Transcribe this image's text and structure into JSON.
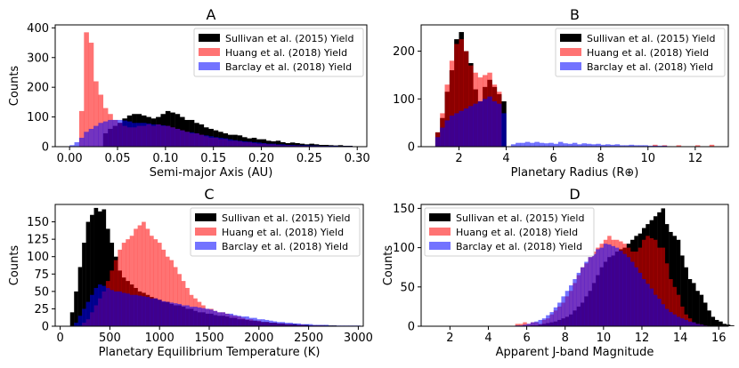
{
  "chart_data": [
    {
      "type": "histogram",
      "title": "A",
      "xlabel": "Semi-major Axis (AU)",
      "ylabel": "Counts",
      "xlim": [
        -0.015,
        0.31
      ],
      "ylim": [
        0,
        410
      ],
      "xticks": [
        0.0,
        0.05,
        0.1,
        0.15,
        0.2,
        0.25,
        0.3
      ],
      "xtick_labels": [
        "0.00",
        "0.05",
        "0.10",
        "0.15",
        "0.20",
        "0.25",
        "0.30"
      ],
      "yticks": [
        0,
        100,
        200,
        300,
        400
      ],
      "bin_start": 0.0,
      "bin_width": 0.005,
      "legend_position": "top-right",
      "series": [
        {
          "name": "Sullivan et al. (2015) Yield",
          "color": "#000000",
          "opacity": 1.0,
          "values": [
            0,
            0,
            0,
            0,
            0,
            0,
            0,
            45,
            60,
            70,
            80,
            95,
            105,
            110,
            110,
            105,
            100,
            95,
            100,
            110,
            120,
            115,
            110,
            100,
            90,
            90,
            80,
            75,
            65,
            60,
            55,
            50,
            45,
            40,
            40,
            38,
            32,
            28,
            30,
            25,
            25,
            20,
            18,
            20,
            15,
            12,
            14,
            12,
            10,
            8,
            10,
            8,
            6,
            6,
            5,
            4,
            5,
            3,
            3,
            0,
            0
          ]
        },
        {
          "name": "Huang et al. (2018) Yield",
          "color": "#ff0000",
          "opacity": 0.55,
          "values": [
            0,
            0,
            120,
            385,
            350,
            220,
            175,
            130,
            110,
            90,
            80,
            70,
            65,
            65,
            70,
            70,
            75,
            70,
            75,
            70,
            70,
            65,
            60,
            55,
            50,
            45,
            45,
            40,
            35,
            30,
            30,
            25,
            25,
            20,
            20,
            18,
            15,
            15,
            12,
            10,
            10,
            8,
            8,
            6,
            5,
            5,
            4,
            4,
            3,
            3,
            2,
            2,
            2,
            2,
            1,
            1,
            0,
            0,
            0,
            0,
            0
          ]
        },
        {
          "name": "Barclay et al. (2018) Yield",
          "color": "#0000ff",
          "opacity": 0.55,
          "values": [
            5,
            15,
            30,
            50,
            60,
            70,
            80,
            85,
            90,
            90,
            90,
            88,
            85,
            80,
            80,
            80,
            78,
            75,
            75,
            72,
            70,
            65,
            60,
            55,
            50,
            48,
            45,
            40,
            38,
            35,
            32,
            30,
            28,
            25,
            22,
            20,
            18,
            17,
            15,
            14,
            12,
            10,
            10,
            8,
            8,
            6,
            6,
            5,
            5,
            5,
            4,
            4,
            3,
            3,
            3,
            3,
            2,
            2,
            2,
            1,
            1
          ]
        }
      ]
    },
    {
      "type": "histogram",
      "title": "B",
      "xlabel": "Planetary Radius (R⊕)",
      "ylabel": "",
      "xlim": [
        0.4,
        13.4
      ],
      "ylim": [
        0,
        255
      ],
      "xticks": [
        2,
        4,
        6,
        8,
        10,
        12
      ],
      "xtick_labels": [
        "2",
        "4",
        "6",
        "8",
        "10",
        "12"
      ],
      "yticks": [
        0,
        100,
        200
      ],
      "bin_start": 1.0,
      "bin_width": 0.2,
      "legend_position": "top-right",
      "series": [
        {
          "name": "Sullivan et al. (2015) Yield",
          "color": "#000000",
          "opacity": 1.0,
          "values": [
            30,
            60,
            115,
            160,
            225,
            240,
            200,
            175,
            120,
            95,
            125,
            140,
            125,
            110,
            95
          ]
        },
        {
          "name": "Huang et al. (2018) Yield",
          "color": "#ff0000",
          "opacity": 0.55,
          "values": [
            30,
            70,
            130,
            180,
            215,
            225,
            200,
            170,
            155,
            145,
            150,
            155,
            130,
            115,
            0,
            0,
            0,
            0,
            0,
            0,
            0,
            0,
            0,
            0,
            0,
            0,
            0,
            0,
            0,
            0,
            0,
            0,
            0,
            0,
            0,
            0,
            0,
            0,
            0,
            0,
            0,
            0,
            0,
            0,
            0,
            0,
            4,
            0,
            3,
            0,
            0,
            3,
            0,
            0,
            0,
            3,
            0,
            0,
            4,
            0
          ]
        },
        {
          "name": "Barclay et al. (2018) Yield",
          "color": "#0000ff",
          "opacity": 0.55,
          "values": [
            20,
            40,
            55,
            65,
            70,
            75,
            80,
            85,
            90,
            95,
            100,
            105,
            95,
            90,
            70,
            0,
            5,
            8,
            8,
            10,
            8,
            10,
            8,
            7,
            8,
            6,
            10,
            7,
            6,
            8,
            5,
            7,
            6,
            5,
            6,
            4,
            5,
            4,
            5,
            3,
            3,
            4,
            3,
            3,
            3,
            2,
            2,
            2,
            2,
            1
          ]
        }
      ]
    },
    {
      "type": "histogram",
      "title": "C",
      "xlabel": "Planetary Equilibrium Temperature (K)",
      "ylabel": "Counts",
      "xlim": [
        -50,
        3050
      ],
      "ylim": [
        0,
        175
      ],
      "xticks": [
        0,
        500,
        1000,
        1500,
        2000,
        2500,
        3000
      ],
      "xtick_labels": [
        "0",
        "500",
        "1000",
        "1500",
        "2000",
        "2500",
        "3000"
      ],
      "yticks": [
        0,
        25,
        50,
        75,
        100,
        125,
        150
      ],
      "bin_start": 100,
      "bin_width": 40,
      "legend_position": "top-right",
      "series": [
        {
          "name": "Sullivan et al. (2015) Yield",
          "color": "#000000",
          "opacity": 1.0,
          "values": [
            20,
            50,
            85,
            120,
            150,
            160,
            170,
            165,
            168,
            140,
            120,
            100,
            80,
            70,
            65,
            60,
            55,
            50,
            48,
            45,
            42,
            40,
            38,
            35,
            35,
            32,
            30,
            30,
            28,
            25,
            25,
            22,
            20,
            20,
            18,
            18,
            16,
            15,
            15,
            14,
            12,
            12,
            10,
            10,
            9,
            8,
            8,
            7,
            6,
            6,
            5,
            5,
            4,
            4,
            3,
            3,
            3,
            2,
            2,
            2,
            1,
            1,
            1,
            1,
            1,
            1,
            1,
            0,
            0,
            0,
            0,
            0,
            0
          ]
        },
        {
          "name": "Huang et al. (2018) Yield",
          "color": "#ff0000",
          "opacity": 0.55,
          "values": [
            0,
            0,
            0,
            5,
            10,
            20,
            30,
            40,
            50,
            65,
            80,
            95,
            110,
            120,
            125,
            130,
            140,
            145,
            150,
            140,
            130,
            125,
            120,
            110,
            100,
            95,
            85,
            75,
            65,
            55,
            45,
            40,
            35,
            30,
            25,
            25,
            22,
            20,
            20,
            18,
            16,
            15,
            14,
            12,
            10,
            10,
            8,
            8,
            6,
            6,
            5,
            5,
            4,
            4,
            3,
            3,
            2,
            2,
            2,
            1,
            1,
            1,
            1,
            1,
            0,
            0,
            0,
            0,
            0,
            0,
            0,
            0,
            0
          ]
        },
        {
          "name": "Barclay et al. (2018) Yield",
          "color": "#0000ff",
          "opacity": 0.55,
          "values": [
            0,
            5,
            15,
            25,
            35,
            45,
            55,
            60,
            58,
            55,
            52,
            50,
            50,
            48,
            47,
            45,
            45,
            44,
            43,
            42,
            40,
            40,
            38,
            36,
            35,
            34,
            33,
            32,
            30,
            30,
            28,
            28,
            27,
            26,
            25,
            24,
            22,
            20,
            20,
            18,
            18,
            16,
            15,
            14,
            14,
            12,
            12,
            10,
            10,
            9,
            8,
            7,
            6,
            6,
            5,
            5,
            4,
            4,
            3,
            3,
            3,
            2,
            2,
            2,
            2,
            1,
            1,
            1,
            1,
            1,
            1,
            1,
            1
          ]
        }
      ]
    },
    {
      "type": "histogram",
      "title": "D",
      "xlabel": "Apparent J-band Magnitude",
      "ylabel": "Counts",
      "xlim": [
        0.5,
        16.5
      ],
      "ylim": [
        0,
        155
      ],
      "xticks": [
        2,
        4,
        6,
        8,
        10,
        12,
        14,
        16
      ],
      "xtick_labels": [
        "2",
        "4",
        "6",
        "8",
        "10",
        "12",
        "14",
        "16"
      ],
      "yticks": [
        0,
        50,
        100,
        150
      ],
      "bin_start": 2.0,
      "bin_width": 0.2,
      "legend_position": "top-left",
      "series": [
        {
          "name": "Sullivan et al. (2015) Yield",
          "color": "#000000",
          "opacity": 1.0,
          "values": [
            0,
            0,
            0,
            0,
            0,
            0,
            0,
            0,
            0,
            0,
            0,
            0,
            0,
            0,
            0,
            0,
            0,
            0,
            0,
            0,
            0,
            1,
            1,
            2,
            3,
            4,
            5,
            6,
            8,
            10,
            12,
            15,
            20,
            25,
            30,
            38,
            45,
            55,
            65,
            75,
            82,
            88,
            90,
            95,
            98,
            100,
            105,
            110,
            115,
            118,
            125,
            130,
            135,
            140,
            145,
            150,
            130,
            120,
            115,
            110,
            90,
            75,
            60,
            55,
            45,
            40,
            30,
            20,
            12,
            8,
            6,
            3,
            2,
            1,
            0,
            0,
            0
          ]
        },
        {
          "name": "Huang et al. (2018) Yield",
          "color": "#ff0000",
          "opacity": 0.55,
          "values": [
            0,
            0,
            0,
            0,
            0,
            0,
            0,
            0,
            0,
            0,
            0,
            0,
            0,
            0,
            0,
            0,
            0,
            3,
            3,
            5,
            3,
            5,
            5,
            3,
            8,
            10,
            15,
            20,
            25,
            30,
            38,
            45,
            55,
            65,
            75,
            80,
            88,
            95,
            100,
            105,
            110,
            115,
            110,
            110,
            108,
            105,
            100,
            95,
            95,
            100,
            110,
            115,
            112,
            110,
            100,
            100,
            80,
            60,
            50,
            40,
            25,
            15,
            10,
            5,
            3,
            2,
            1,
            0,
            0,
            0,
            0,
            0,
            0,
            0,
            0,
            0,
            0
          ]
        },
        {
          "name": "Barclay et al. (2018) Yield",
          "color": "#0000ff",
          "opacity": 0.55,
          "values": [
            0,
            0,
            0,
            0,
            0,
            0,
            0,
            0,
            0,
            0,
            0,
            0,
            0,
            0,
            0,
            0,
            0,
            1,
            1,
            2,
            3,
            5,
            6,
            8,
            10,
            14,
            18,
            24,
            30,
            38,
            45,
            52,
            60,
            68,
            75,
            82,
            88,
            92,
            98,
            100,
            105,
            104,
            102,
            100,
            96,
            92,
            88,
            82,
            75,
            68,
            60,
            54,
            48,
            40,
            35,
            28,
            22,
            18,
            15,
            12,
            10,
            8,
            6,
            5,
            3,
            2,
            1,
            0,
            0,
            0,
            0,
            0,
            0,
            0,
            0,
            0,
            0
          ]
        }
      ]
    }
  ]
}
